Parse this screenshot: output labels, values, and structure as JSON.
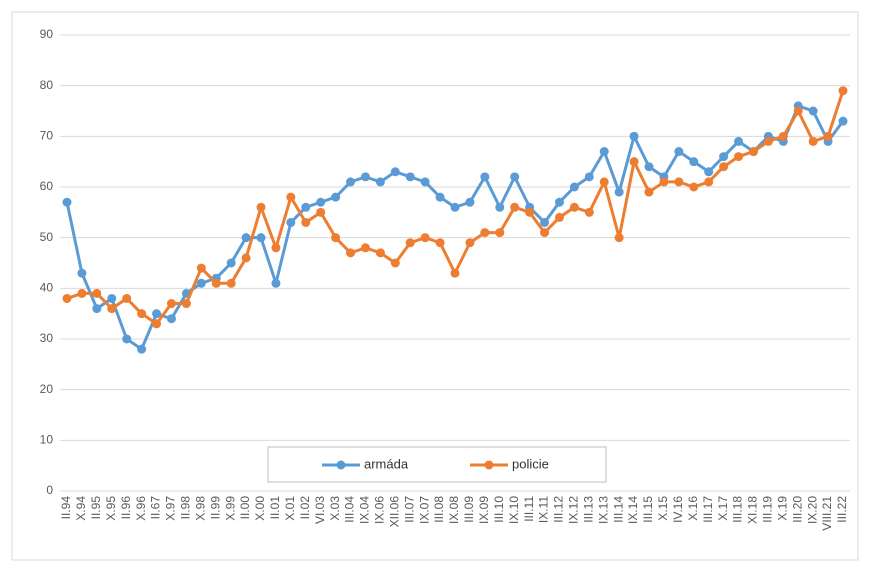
{
  "chart_data": {
    "type": "line",
    "categories": [
      "II.94",
      "X.94",
      "II.95",
      "X.95",
      "II.96",
      "X.96",
      "II.67",
      "X.97",
      "II.98",
      "X.98",
      "II.99",
      "X.99",
      "II.00",
      "X.00",
      "II.01",
      "X.01",
      "II.02",
      "VI.03",
      "X.03",
      "III.04",
      "IX.04",
      "IX.06",
      "XII.06",
      "III.07",
      "IX.07",
      "III.08",
      "IX.08",
      "III.09",
      "IX.09",
      "III.10",
      "IX.10",
      "III.11",
      "IX.11",
      "III.12",
      "IX.12",
      "III.13",
      "IX.13",
      "III.14",
      "IX.14",
      "III.15",
      "X.15",
      "IV.16",
      "X.16",
      "III.17",
      "X.17",
      "III.18",
      "XI.18",
      "III.19",
      "X.19",
      "III.20",
      "IX.20",
      "VIII.21",
      "III.22"
    ],
    "series": [
      {
        "name": "armáda",
        "color": "#5b9bd5",
        "values": [
          57,
          43,
          36,
          38,
          30,
          28,
          35,
          34,
          39,
          41,
          42,
          45,
          50,
          50,
          41,
          53,
          56,
          57,
          58,
          61,
          62,
          61,
          63,
          62,
          61,
          58,
          56,
          57,
          62,
          56,
          62,
          56,
          53,
          57,
          60,
          62,
          67,
          59,
          70,
          64,
          62,
          67,
          65,
          63,
          66,
          69,
          67,
          70,
          69,
          76,
          75,
          69,
          73
        ]
      },
      {
        "name": "policie",
        "color": "#ed7d31",
        "values": [
          38,
          39,
          39,
          36,
          38,
          35,
          33,
          37,
          37,
          44,
          41,
          41,
          46,
          56,
          48,
          58,
          53,
          55,
          50,
          47,
          48,
          47,
          45,
          49,
          50,
          49,
          43,
          49,
          51,
          51,
          56,
          55,
          51,
          54,
          56,
          55,
          61,
          50,
          65,
          59,
          61,
          61,
          60,
          61,
          64,
          66,
          67,
          69,
          70,
          75,
          69,
          70,
          79
        ]
      }
    ],
    "ylim": [
      0,
      90
    ],
    "yticks": [
      0,
      10,
      20,
      30,
      40,
      50,
      60,
      70,
      80,
      90
    ],
    "grid": true,
    "legend": "bottom"
  }
}
